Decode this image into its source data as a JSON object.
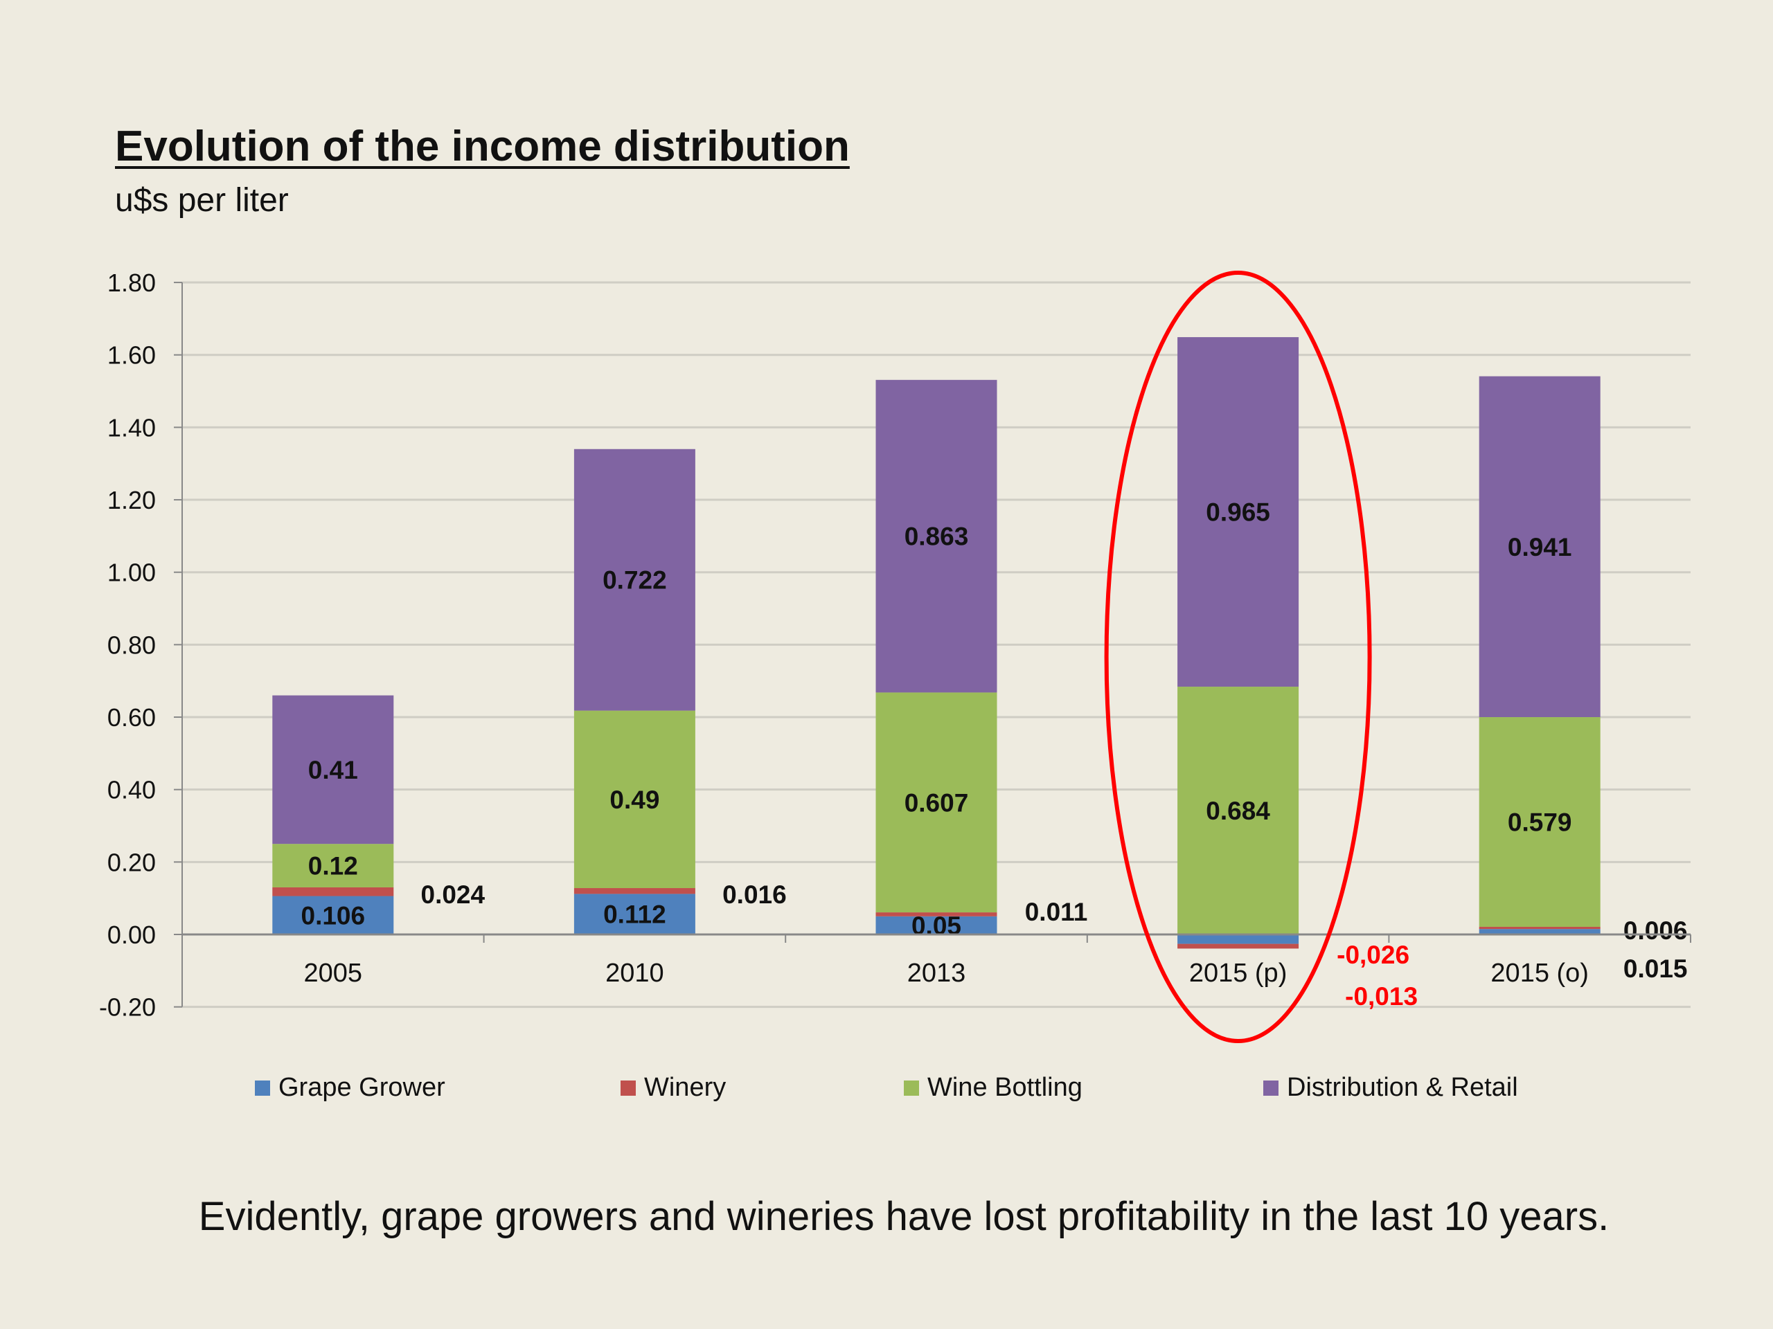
{
  "title": "Evolution of the income distribution",
  "subtitle": "u$s per liter",
  "caption": "Evidently, grape growers and wineries have lost profitability in the last 10 years.",
  "chart_data": {
    "type": "bar",
    "stacked": true,
    "title": "Evolution of the income distribution",
    "ylabel": "u$s per liter",
    "xlabel": "",
    "ylim": [
      -0.2,
      1.8
    ],
    "yticks": [
      "-0.20",
      "0.00",
      "0.20",
      "0.40",
      "0.60",
      "0.80",
      "1.00",
      "1.20",
      "1.40",
      "1.60",
      "1.80"
    ],
    "ytick_values": [
      -0.2,
      0,
      0.2,
      0.4,
      0.6,
      0.8,
      1.0,
      1.2,
      1.4,
      1.6,
      1.8
    ],
    "grid": true,
    "legend_position": "bottom",
    "categories": [
      "2005",
      "2010",
      "2013",
      "2015 (p)",
      "2015 (o)"
    ],
    "series": [
      {
        "name": "Grape Grower",
        "color": "#4F81BD",
        "values": [
          0.106,
          0.112,
          0.05,
          -0.026,
          0.015
        ],
        "labels": [
          "0.106",
          "0.112",
          "0.05",
          "-0,026",
          "0.015"
        ]
      },
      {
        "name": "Winery",
        "color": "#C0504D",
        "values": [
          0.024,
          0.016,
          0.011,
          -0.013,
          0.006
        ],
        "labels": [
          "0.024",
          "0.016",
          "0.011",
          "-0,013",
          "0.006"
        ]
      },
      {
        "name": "Wine Bottling",
        "color": "#9BBB59",
        "values": [
          0.12,
          0.49,
          0.607,
          0.684,
          0.579
        ],
        "labels": [
          "0.12",
          "0.49",
          "0.607",
          "0.684",
          "0.579"
        ]
      },
      {
        "name": "Distribution & Retail",
        "color": "#8064A2",
        "values": [
          0.41,
          0.722,
          0.863,
          0.965,
          0.941
        ],
        "labels": [
          "0.41",
          "0.722",
          "0.863",
          "0.965",
          "0.941"
        ]
      }
    ],
    "annotation": {
      "type": "ellipse",
      "target_category": "2015 (p)",
      "color": "#FF0000"
    },
    "negative_label_color": "#FF0000"
  }
}
